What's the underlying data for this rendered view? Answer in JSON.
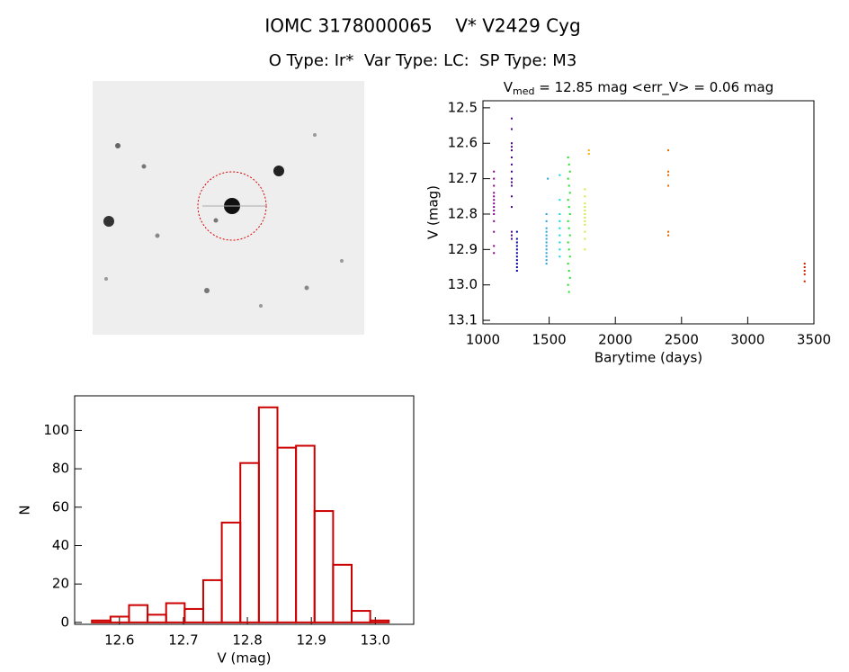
{
  "title": "IOMC 3178000065    V* V2429 Cyg",
  "subtitle": "O Type: Ir*  Var Type: LC:  SP Type: M3",
  "chart_data": [
    {
      "type": "scatter",
      "title": [
        "V",
        "med",
        " = 12.85 mag <err_V> = 0.06 mag"
      ],
      "x_label": "Barytime (days)",
      "y_label": "V (mag)",
      "xlim": [
        1000,
        3500
      ],
      "xticks": [
        1000,
        1500,
        2000,
        2500,
        3000,
        3500
      ],
      "ylim": [
        13.11,
        12.48
      ],
      "yticks": [
        12.5,
        12.6,
        12.7,
        12.8,
        12.9,
        {
          "value": 13.0,
          "label": "13.0"
        },
        13.1
      ],
      "series": [
        {
          "color": "#800080",
          "x": [
            1083,
            1083,
            1083,
            1083,
            1083,
            1083,
            1083,
            1083,
            1083,
            1083,
            1083,
            1083,
            1083,
            1083
          ],
          "values": [
            12.68,
            12.7,
            12.72,
            12.74,
            12.75,
            12.76,
            12.77,
            12.78,
            12.79,
            12.8,
            12.82,
            12.85,
            12.89,
            12.91
          ]
        },
        {
          "color": "#4b0082",
          "x": [
            1217,
            1217,
            1217,
            1217,
            1217,
            1217,
            1217,
            1217,
            1217,
            1217,
            1217,
            1217,
            1217,
            1217,
            1217,
            1217
          ],
          "values": [
            12.53,
            12.56,
            12.6,
            12.61,
            12.62,
            12.64,
            12.66,
            12.68,
            12.7,
            12.71,
            12.72,
            12.75,
            12.78,
            12.85,
            12.86,
            12.87
          ]
        },
        {
          "color": "#000099",
          "x": [
            1257,
            1257,
            1257,
            1257,
            1257,
            1257,
            1257,
            1257,
            1257,
            1257,
            1257
          ],
          "values": [
            12.85,
            12.87,
            12.88,
            12.89,
            12.9,
            12.91,
            12.92,
            12.93,
            12.94,
            12.95,
            12.96
          ]
        },
        {
          "color": "#2aa0e0",
          "x": [
            1480,
            1480,
            1480,
            1480,
            1480,
            1480,
            1480,
            1480,
            1480,
            1480,
            1480,
            1480,
            1480,
            1490
          ],
          "values": [
            12.8,
            12.82,
            12.84,
            12.85,
            12.86,
            12.87,
            12.88,
            12.89,
            12.9,
            12.91,
            12.92,
            12.93,
            12.94,
            12.7
          ]
        },
        {
          "color": "#00dddd",
          "x": [
            1580,
            1580,
            1580,
            1580,
            1580,
            1580,
            1580,
            1580,
            1580
          ],
          "values": [
            12.69,
            12.76,
            12.8,
            12.82,
            12.84,
            12.86,
            12.88,
            12.9,
            12.92
          ]
        },
        {
          "color": "#22dd22",
          "x": [
            1643,
            1650,
            1657,
            1643,
            1650,
            1657,
            1643,
            1650,
            1657,
            1643,
            1650,
            1657,
            1643,
            1650,
            1657,
            1643,
            1650,
            1657,
            1643,
            1650
          ],
          "values": [
            12.64,
            12.66,
            12.68,
            12.7,
            12.72,
            12.74,
            12.76,
            12.78,
            12.8,
            12.82,
            12.84,
            12.86,
            12.88,
            12.9,
            12.92,
            12.94,
            12.96,
            12.98,
            13.0,
            13.02
          ]
        },
        {
          "color": "#ccee33",
          "x": [
            1770,
            1770,
            1770,
            1770,
            1770,
            1770,
            1770,
            1770,
            1770,
            1770,
            1770,
            1770
          ],
          "values": [
            12.73,
            12.75,
            12.77,
            12.78,
            12.79,
            12.8,
            12.81,
            12.82,
            12.83,
            12.85,
            12.87,
            12.9
          ]
        },
        {
          "color": "#ffaa00",
          "x": [
            1800,
            1800
          ],
          "values": [
            12.62,
            12.63
          ]
        },
        {
          "color": "#dd6600",
          "x": [
            2400,
            2400,
            2400,
            2400,
            2400,
            2400
          ],
          "values": [
            12.62,
            12.68,
            12.69,
            12.72,
            12.85,
            12.86
          ]
        },
        {
          "color": "#cc2200",
          "x": [
            3430,
            3430,
            3430,
            3430,
            3430
          ],
          "values": [
            12.94,
            12.95,
            12.96,
            12.97,
            12.99
          ]
        }
      ]
    },
    {
      "type": "histogram",
      "x_label": "V (mag)",
      "y_label": "N",
      "color": "#cc0000",
      "xlim": [
        12.53,
        13.06
      ],
      "xticks": [
        12.6,
        12.7,
        12.8,
        12.9,
        {
          "value": 13.0,
          "label": "13.0"
        }
      ],
      "ylim": [
        -1,
        118
      ],
      "yticks": [
        0,
        20,
        40,
        60,
        80,
        100
      ],
      "bins": [
        12.557,
        12.586,
        12.615,
        12.644,
        12.673,
        12.702,
        12.731,
        12.76,
        12.789,
        12.818,
        12.847,
        12.876,
        12.905,
        12.934,
        12.963,
        12.992,
        13.021
      ],
      "values": [
        1,
        3,
        9,
        4,
        10,
        7,
        22,
        52,
        83,
        112,
        91,
        92,
        58,
        30,
        6,
        1
      ]
    }
  ]
}
